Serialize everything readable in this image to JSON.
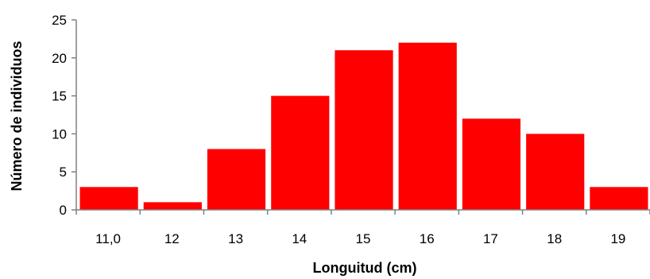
{
  "chart_data": {
    "type": "bar",
    "categories": [
      "11,0",
      "12",
      "13",
      "14",
      "15",
      "16",
      "17",
      "18",
      "19"
    ],
    "values": [
      3,
      1,
      8,
      15,
      21,
      22,
      12,
      10,
      3
    ],
    "yticks": [
      "0",
      "5",
      "10",
      "15",
      "20",
      "25"
    ],
    "ylim": [
      0,
      25
    ],
    "xlabel": "Longuitud (cm)",
    "ylabel": "Número de individuos",
    "grid": false,
    "legend": "none",
    "bar_color": "#ff0000"
  }
}
